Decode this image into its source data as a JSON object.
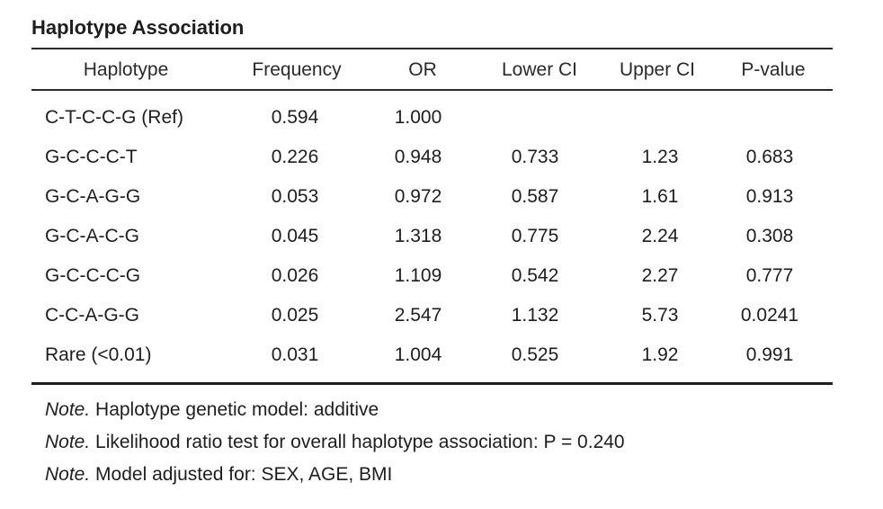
{
  "title": "Haplotype Association",
  "columns": [
    "Haplotype",
    "Frequency",
    "OR",
    "Lower CI",
    "Upper CI",
    "P-value"
  ],
  "rows": [
    [
      "C-T-C-C-G (Ref)",
      "0.594",
      "1.000",
      "",
      "",
      ""
    ],
    [
      "G-C-C-C-T",
      "0.226",
      "0.948",
      "0.733",
      "1.23",
      "0.683"
    ],
    [
      "G-C-A-G-G",
      "0.053",
      "0.972",
      "0.587",
      "1.61",
      "0.913"
    ],
    [
      "G-C-A-C-G",
      "0.045",
      "1.318",
      "0.775",
      "2.24",
      "0.308"
    ],
    [
      "G-C-C-C-G",
      "0.026",
      "1.109",
      "0.542",
      "2.27",
      "0.777"
    ],
    [
      "C-C-A-G-G",
      "0.025",
      "2.547",
      "1.132",
      "5.73",
      "0.0241"
    ],
    [
      "Rare (<0.01)",
      "0.031",
      "1.004",
      "0.525",
      "1.92",
      "0.991"
    ]
  ],
  "notes": [
    {
      "prefix": "Note.",
      "text": " Haplotype genetic model: additive"
    },
    {
      "prefix": "Note.",
      "text": " Likelihood ratio test for overall haplotype association: P = 0.240"
    },
    {
      "prefix": "Note.",
      "text": " Model adjusted for: SEX, AGE, BMI"
    }
  ]
}
